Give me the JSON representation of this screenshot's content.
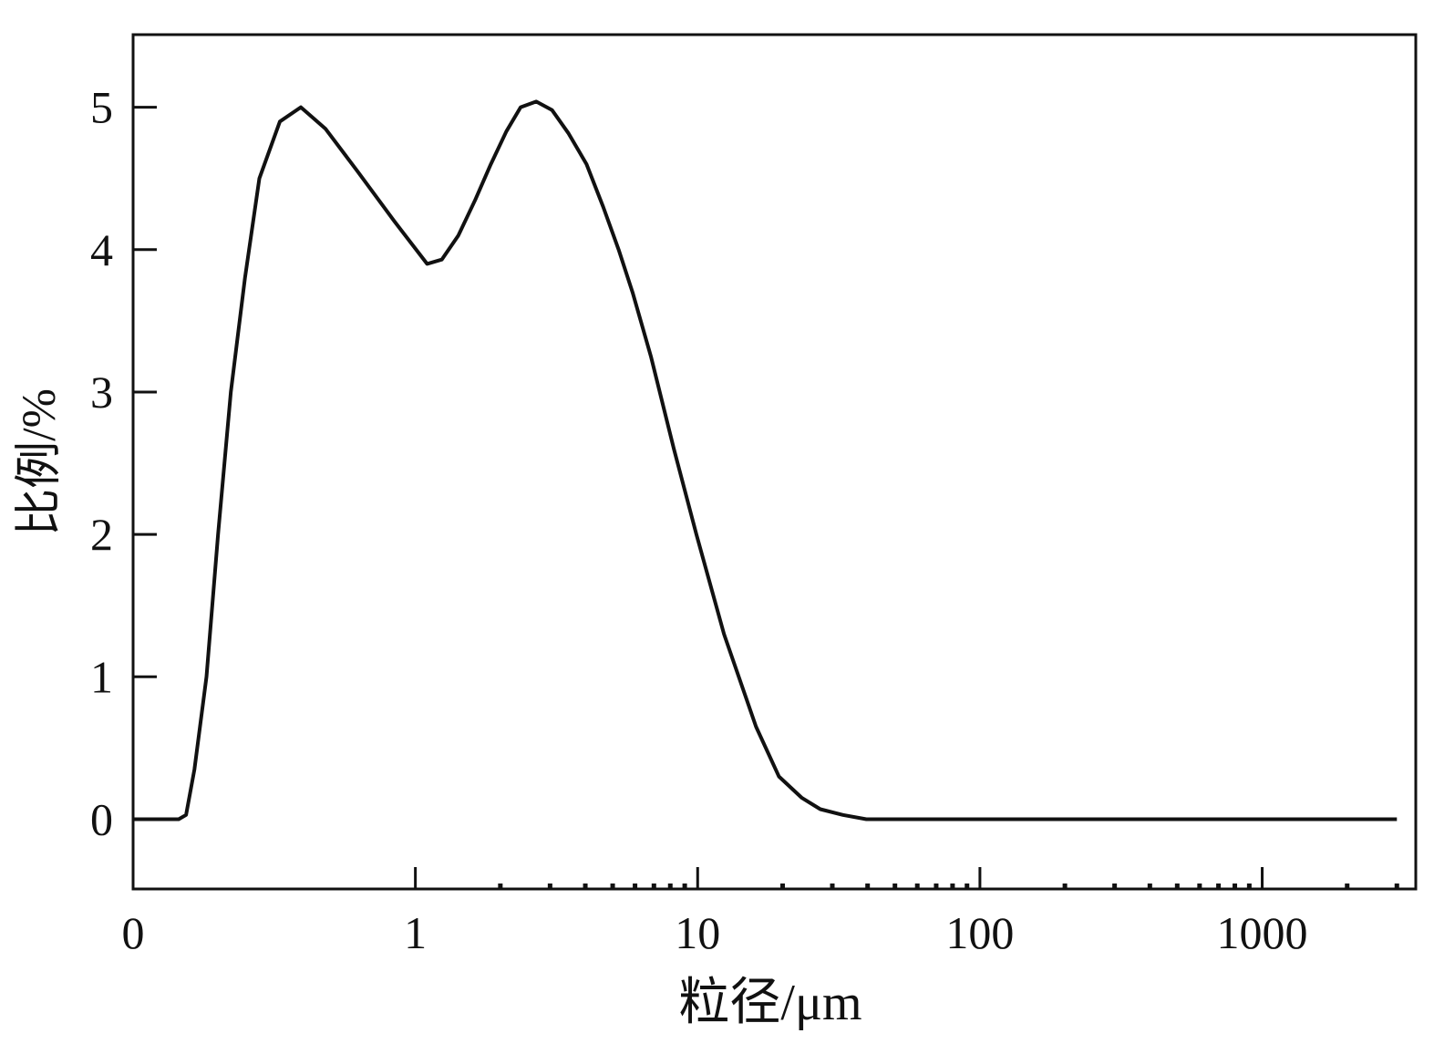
{
  "chart_data": {
    "type": "line",
    "xlabel": "粒径/μm",
    "ylabel": "比例/%",
    "x": [
      0.1,
      0.145,
      0.154,
      0.165,
      0.182,
      0.2,
      0.222,
      0.249,
      0.28,
      0.331,
      0.393,
      0.48,
      0.624,
      0.842,
      1.1,
      1.24,
      1.42,
      1.63,
      1.85,
      2.1,
      2.36,
      2.68,
      3.05,
      3.48,
      4.04,
      4.63,
      5.25,
      5.88,
      6.83,
      8.24,
      9.9,
      12.4,
      16.1,
      19.4,
      23.4,
      27.2,
      32.7,
      39.6,
      3000
    ],
    "series": [
      {
        "color": "#111111",
        "values": [
          0,
          0,
          0.03,
          0.35,
          1.0,
          2.0,
          3.0,
          3.8,
          4.5,
          4.9,
          5.0,
          4.85,
          4.55,
          4.2,
          3.9,
          3.93,
          4.1,
          4.35,
          4.6,
          4.83,
          5.0,
          5.04,
          4.98,
          4.82,
          4.6,
          4.3,
          4.0,
          3.7,
          3.25,
          2.6,
          2.0,
          1.3,
          0.65,
          0.3,
          0.15,
          0.07,
          0.03,
          0,
          0
        ]
      }
    ],
    "xscale": "log",
    "xlim": [
      0.1,
      3500
    ],
    "xticks": [
      {
        "value": 0.1,
        "label": "0"
      },
      1,
      10,
      100,
      1000
    ],
    "xminorticks": [
      2,
      3,
      4,
      5,
      6,
      7,
      8,
      9,
      20,
      30,
      40,
      50,
      60,
      70,
      80,
      90,
      200,
      300,
      400,
      500,
      600,
      700,
      800,
      900,
      2000,
      3000
    ],
    "ylim": [
      -0.49,
      5.51
    ],
    "yticks": [
      0,
      1,
      2,
      3,
      4,
      5
    ]
  }
}
